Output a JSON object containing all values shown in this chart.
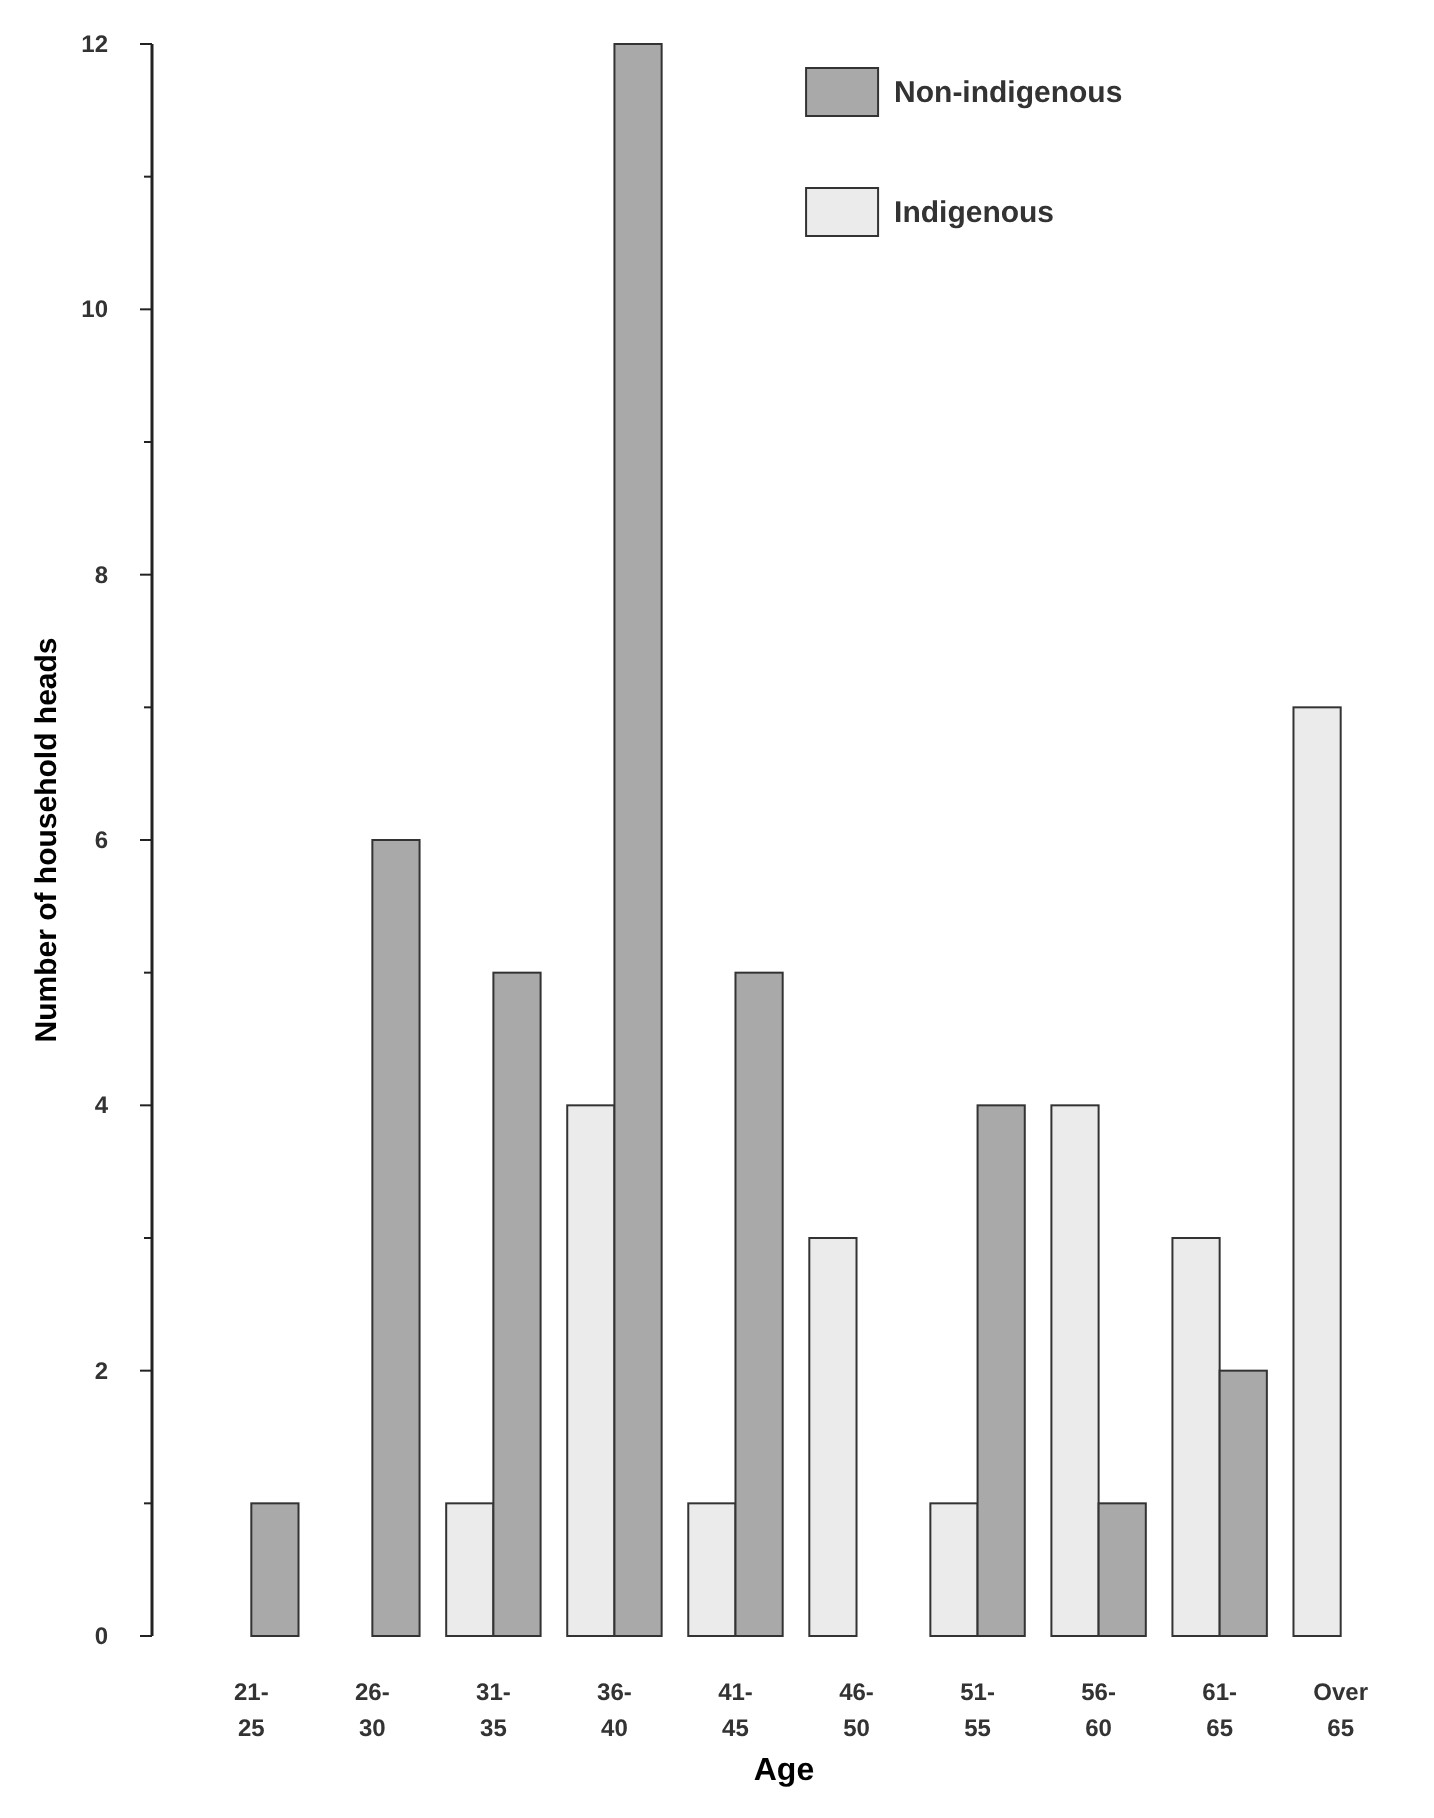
{
  "chart_data": {
    "type": "bar",
    "xlabel": "Age",
    "ylabel": "Number of household heads",
    "categories": [
      "21- 25",
      "26- 30",
      "31- 35",
      "36- 40",
      "41- 45",
      "46- 50",
      "51- 55",
      "56- 60",
      "61- 65",
      "Over 65"
    ],
    "series": [
      {
        "name": "Indigenous",
        "color": "#ebebeb",
        "values": [
          0,
          0,
          1,
          4,
          1,
          3,
          1,
          4,
          3,
          7
        ]
      },
      {
        "name": "Non-indigenous",
        "color": "#a9a9a9",
        "values": [
          1,
          6,
          5,
          12,
          5,
          0,
          4,
          1,
          2,
          0
        ]
      }
    ],
    "ylim": [
      0,
      12
    ],
    "yticks": [
      0,
      2,
      4,
      6,
      8,
      10,
      12
    ],
    "legend": "top right",
    "grid": false
  }
}
